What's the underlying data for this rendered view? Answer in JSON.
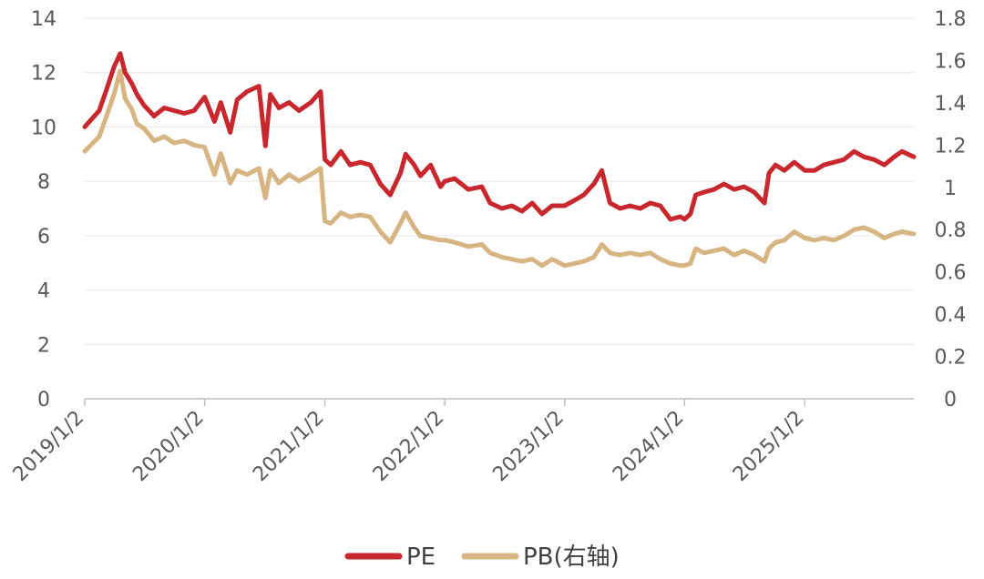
{
  "chart_data": {
    "type": "line",
    "title": "",
    "xlabel": "",
    "ylabel": "",
    "x_tick_labels": [
      "2019/1/2",
      "2020/1/2",
      "2021/1/2",
      "2022/1/2",
      "2023/1/2",
      "2024/1/2",
      "2025/1/2"
    ],
    "x_range": [
      "2019-01-02",
      "2025-11-30"
    ],
    "ylim_left": [
      0,
      14
    ],
    "yticks_left": [
      "0",
      "2",
      "4",
      "6",
      "8",
      "10",
      "12",
      "14"
    ],
    "ylim_right": [
      0,
      1.8
    ],
    "yticks_right": [
      "0",
      "0.2",
      "0.4",
      "0.6",
      "0.8",
      "1",
      "1.2",
      "1.4",
      "1.6",
      "1.8"
    ],
    "grid": "horizontal",
    "legend_position": "bottom",
    "series": [
      {
        "name": "PE",
        "axis": "left",
        "color": "#C8282D",
        "points": [
          [
            "2019-01-02",
            10.0
          ],
          [
            "2019-02-15",
            10.6
          ],
          [
            "2019-03-10",
            11.4
          ],
          [
            "2019-04-01",
            12.2
          ],
          [
            "2019-04-20",
            12.7
          ],
          [
            "2019-05-05",
            12.0
          ],
          [
            "2019-05-25",
            11.6
          ],
          [
            "2019-06-10",
            11.2
          ],
          [
            "2019-07-01",
            10.8
          ],
          [
            "2019-08-01",
            10.4
          ],
          [
            "2019-09-01",
            10.7
          ],
          [
            "2019-10-01",
            10.6
          ],
          [
            "2019-11-01",
            10.5
          ],
          [
            "2019-12-01",
            10.6
          ],
          [
            "2020-01-02",
            11.1
          ],
          [
            "2020-02-01",
            10.2
          ],
          [
            "2020-02-20",
            10.9
          ],
          [
            "2020-03-20",
            9.8
          ],
          [
            "2020-04-10",
            11.0
          ],
          [
            "2020-05-10",
            11.3
          ],
          [
            "2020-06-15",
            11.5
          ],
          [
            "2020-07-05",
            9.3
          ],
          [
            "2020-07-20",
            11.2
          ],
          [
            "2020-08-15",
            10.7
          ],
          [
            "2020-09-15",
            10.9
          ],
          [
            "2020-10-15",
            10.6
          ],
          [
            "2020-11-20",
            10.9
          ],
          [
            "2020-12-20",
            11.3
          ],
          [
            "2021-01-02",
            8.8
          ],
          [
            "2021-01-20",
            8.6
          ],
          [
            "2021-02-20",
            9.1
          ],
          [
            "2021-03-20",
            8.6
          ],
          [
            "2021-04-20",
            8.7
          ],
          [
            "2021-05-20",
            8.6
          ],
          [
            "2021-06-20",
            7.9
          ],
          [
            "2021-07-20",
            7.5
          ],
          [
            "2021-08-20",
            8.3
          ],
          [
            "2021-09-05",
            9.0
          ],
          [
            "2021-10-01",
            8.6
          ],
          [
            "2021-10-20",
            8.2
          ],
          [
            "2021-11-20",
            8.6
          ],
          [
            "2021-12-20",
            7.8
          ],
          [
            "2022-01-02",
            8.0
          ],
          [
            "2022-02-01",
            8.1
          ],
          [
            "2022-03-15",
            7.7
          ],
          [
            "2022-04-25",
            7.8
          ],
          [
            "2022-05-20",
            7.2
          ],
          [
            "2022-06-25",
            7.0
          ],
          [
            "2022-07-25",
            7.1
          ],
          [
            "2022-08-25",
            6.9
          ],
          [
            "2022-09-25",
            7.2
          ],
          [
            "2022-10-25",
            6.8
          ],
          [
            "2022-11-25",
            7.1
          ],
          [
            "2023-01-02",
            7.1
          ],
          [
            "2023-02-01",
            7.3
          ],
          [
            "2023-03-01",
            7.5
          ],
          [
            "2023-04-01",
            7.9
          ],
          [
            "2023-04-25",
            8.4
          ],
          [
            "2023-05-20",
            7.2
          ],
          [
            "2023-06-20",
            7.0
          ],
          [
            "2023-07-20",
            7.1
          ],
          [
            "2023-08-20",
            7.0
          ],
          [
            "2023-09-20",
            7.2
          ],
          [
            "2023-10-20",
            7.1
          ],
          [
            "2023-11-20",
            6.6
          ],
          [
            "2023-12-20",
            6.7
          ],
          [
            "2024-01-02",
            6.6
          ],
          [
            "2024-01-20",
            6.8
          ],
          [
            "2024-02-05",
            7.5
          ],
          [
            "2024-03-01",
            7.6
          ],
          [
            "2024-04-01",
            7.7
          ],
          [
            "2024-05-01",
            7.9
          ],
          [
            "2024-06-01",
            7.7
          ],
          [
            "2024-07-01",
            7.8
          ],
          [
            "2024-08-01",
            7.6
          ],
          [
            "2024-09-01",
            7.2
          ],
          [
            "2024-09-15",
            8.3
          ],
          [
            "2024-10-05",
            8.6
          ],
          [
            "2024-11-01",
            8.4
          ],
          [
            "2024-12-01",
            8.7
          ],
          [
            "2025-01-02",
            8.4
          ],
          [
            "2025-02-01",
            8.4
          ],
          [
            "2025-03-01",
            8.6
          ],
          [
            "2025-04-01",
            8.7
          ],
          [
            "2025-05-01",
            8.8
          ],
          [
            "2025-06-01",
            9.1
          ],
          [
            "2025-07-01",
            8.9
          ],
          [
            "2025-08-01",
            8.8
          ],
          [
            "2025-09-01",
            8.6
          ],
          [
            "2025-10-01",
            8.9
          ],
          [
            "2025-10-25",
            9.1
          ],
          [
            "2025-11-30",
            8.9
          ]
        ]
      },
      {
        "name": "PB(右轴)",
        "axis": "right",
        "color": "#D7B582",
        "points": [
          [
            "2019-01-02",
            1.17
          ],
          [
            "2019-02-15",
            1.24
          ],
          [
            "2019-03-10",
            1.34
          ],
          [
            "2019-04-01",
            1.44
          ],
          [
            "2019-04-20",
            1.55
          ],
          [
            "2019-05-05",
            1.42
          ],
          [
            "2019-05-25",
            1.37
          ],
          [
            "2019-06-10",
            1.3
          ],
          [
            "2019-07-01",
            1.28
          ],
          [
            "2019-08-01",
            1.22
          ],
          [
            "2019-09-01",
            1.24
          ],
          [
            "2019-10-01",
            1.21
          ],
          [
            "2019-11-01",
            1.22
          ],
          [
            "2019-12-01",
            1.2
          ],
          [
            "2020-01-02",
            1.19
          ],
          [
            "2020-02-01",
            1.06
          ],
          [
            "2020-02-20",
            1.16
          ],
          [
            "2020-03-20",
            1.02
          ],
          [
            "2020-04-10",
            1.08
          ],
          [
            "2020-05-10",
            1.06
          ],
          [
            "2020-06-15",
            1.09
          ],
          [
            "2020-07-05",
            0.95
          ],
          [
            "2020-07-20",
            1.08
          ],
          [
            "2020-08-15",
            1.02
          ],
          [
            "2020-09-15",
            1.06
          ],
          [
            "2020-10-15",
            1.03
          ],
          [
            "2020-11-20",
            1.06
          ],
          [
            "2020-12-20",
            1.09
          ],
          [
            "2021-01-02",
            0.84
          ],
          [
            "2021-01-20",
            0.83
          ],
          [
            "2021-02-20",
            0.88
          ],
          [
            "2021-03-20",
            0.86
          ],
          [
            "2021-04-20",
            0.87
          ],
          [
            "2021-05-20",
            0.86
          ],
          [
            "2021-06-20",
            0.79
          ],
          [
            "2021-07-20",
            0.74
          ],
          [
            "2021-08-20",
            0.83
          ],
          [
            "2021-09-05",
            0.88
          ],
          [
            "2021-10-01",
            0.81
          ],
          [
            "2021-10-20",
            0.77
          ],
          [
            "2021-11-20",
            0.76
          ],
          [
            "2021-12-20",
            0.75
          ],
          [
            "2022-01-02",
            0.75
          ],
          [
            "2022-02-01",
            0.74
          ],
          [
            "2022-03-15",
            0.72
          ],
          [
            "2022-04-25",
            0.73
          ],
          [
            "2022-05-20",
            0.69
          ],
          [
            "2022-06-25",
            0.67
          ],
          [
            "2022-07-25",
            0.66
          ],
          [
            "2022-08-25",
            0.65
          ],
          [
            "2022-09-25",
            0.66
          ],
          [
            "2022-10-25",
            0.63
          ],
          [
            "2022-11-25",
            0.66
          ],
          [
            "2023-01-02",
            0.63
          ],
          [
            "2023-02-01",
            0.64
          ],
          [
            "2023-03-01",
            0.65
          ],
          [
            "2023-04-01",
            0.67
          ],
          [
            "2023-04-25",
            0.73
          ],
          [
            "2023-05-20",
            0.69
          ],
          [
            "2023-06-20",
            0.68
          ],
          [
            "2023-07-20",
            0.69
          ],
          [
            "2023-08-20",
            0.68
          ],
          [
            "2023-09-20",
            0.69
          ],
          [
            "2023-10-20",
            0.66
          ],
          [
            "2023-11-20",
            0.64
          ],
          [
            "2023-12-20",
            0.63
          ],
          [
            "2024-01-02",
            0.63
          ],
          [
            "2024-01-20",
            0.64
          ],
          [
            "2024-02-05",
            0.71
          ],
          [
            "2024-03-01",
            0.69
          ],
          [
            "2024-04-01",
            0.7
          ],
          [
            "2024-05-01",
            0.71
          ],
          [
            "2024-06-01",
            0.68
          ],
          [
            "2024-07-01",
            0.7
          ],
          [
            "2024-08-01",
            0.68
          ],
          [
            "2024-09-01",
            0.65
          ],
          [
            "2024-09-15",
            0.71
          ],
          [
            "2024-10-05",
            0.74
          ],
          [
            "2024-11-01",
            0.75
          ],
          [
            "2024-12-01",
            0.79
          ],
          [
            "2025-01-02",
            0.76
          ],
          [
            "2025-02-01",
            0.75
          ],
          [
            "2025-03-01",
            0.76
          ],
          [
            "2025-04-01",
            0.75
          ],
          [
            "2025-05-01",
            0.77
          ],
          [
            "2025-06-01",
            0.8
          ],
          [
            "2025-07-01",
            0.81
          ],
          [
            "2025-08-01",
            0.79
          ],
          [
            "2025-09-01",
            0.76
          ],
          [
            "2025-10-01",
            0.78
          ],
          [
            "2025-10-25",
            0.79
          ],
          [
            "2025-11-30",
            0.78
          ]
        ]
      }
    ]
  }
}
